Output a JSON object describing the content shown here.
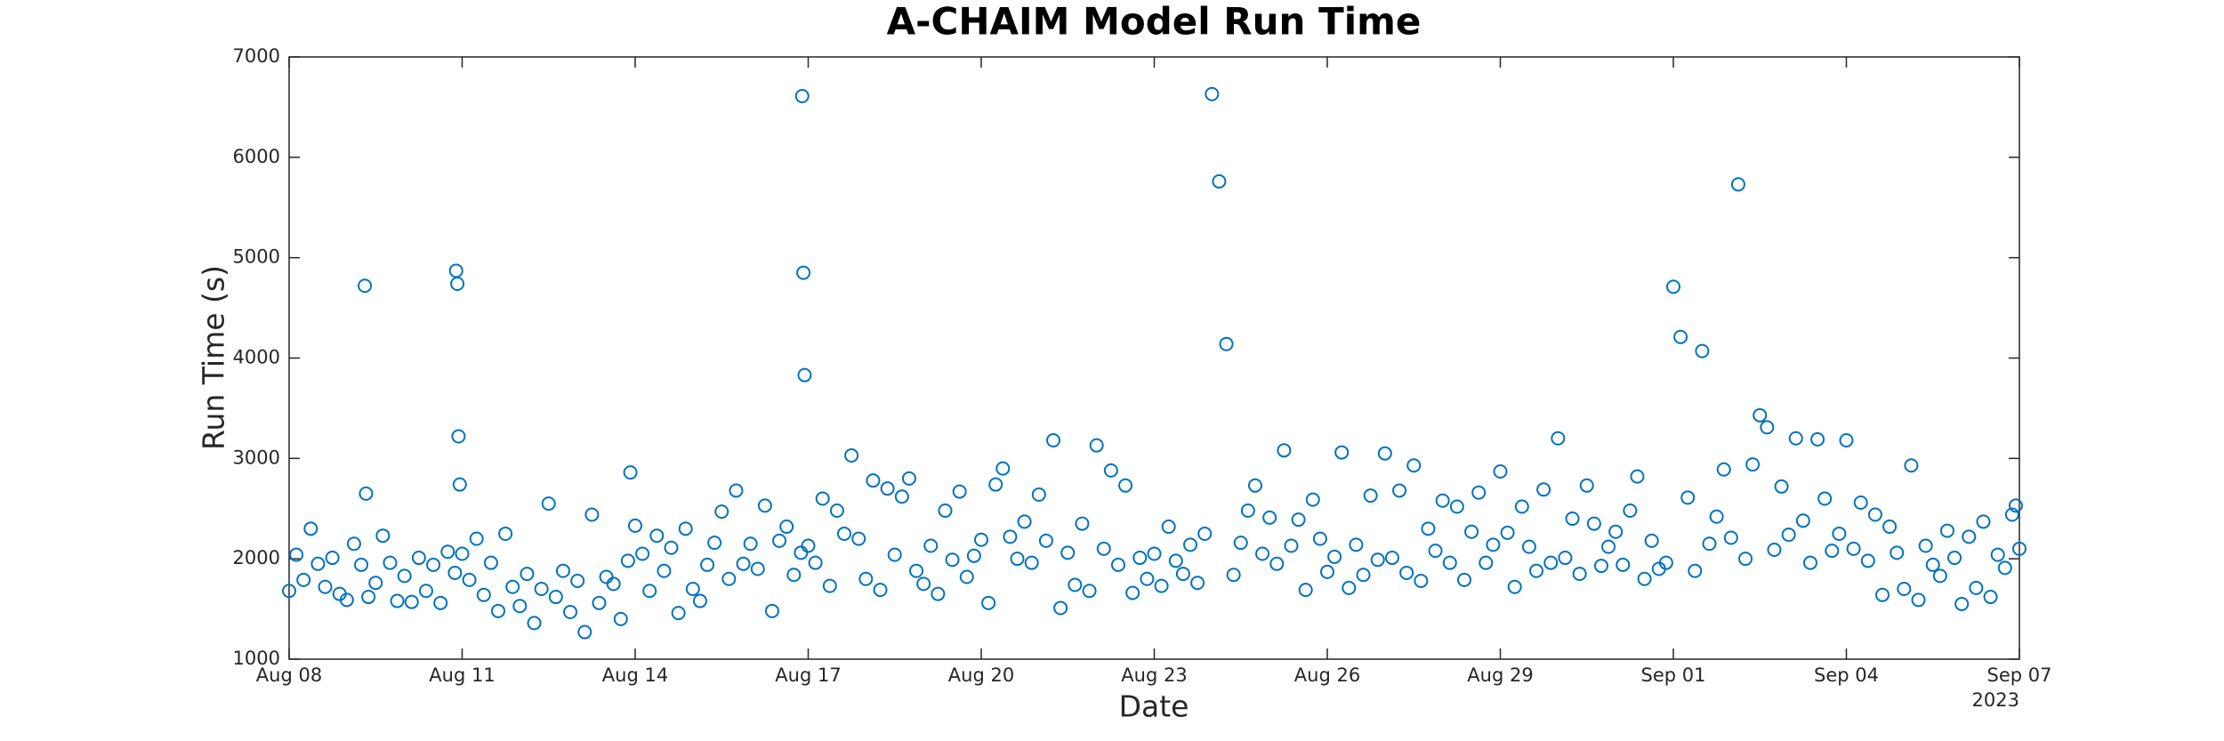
{
  "chart_data": {
    "type": "scatter",
    "title": "A-CHAIM Model Run Time",
    "xlabel": "Date",
    "ylabel": "Run Time (s)",
    "x_year_label": "2023",
    "color": "#0072bd",
    "xlim": [
      "2023-08-08T00:00",
      "2023-09-07T00:00"
    ],
    "xticks": [
      {
        "value": "2023-08-08T00:00",
        "label": "Aug 08"
      },
      {
        "value": "2023-08-11T00:00",
        "label": "Aug 11"
      },
      {
        "value": "2023-08-14T00:00",
        "label": "Aug 14"
      },
      {
        "value": "2023-08-17T00:00",
        "label": "Aug 17"
      },
      {
        "value": "2023-08-20T00:00",
        "label": "Aug 20"
      },
      {
        "value": "2023-08-23T00:00",
        "label": "Aug 23"
      },
      {
        "value": "2023-08-26T00:00",
        "label": "Aug 26"
      },
      {
        "value": "2023-08-29T00:00",
        "label": "Aug 29"
      },
      {
        "value": "2023-09-01T00:00",
        "label": "Sep 01"
      },
      {
        "value": "2023-09-04T00:00",
        "label": "Sep 04"
      },
      {
        "value": "2023-09-07T00:00",
        "label": "Sep 07"
      }
    ],
    "ylim": [
      1000,
      7000
    ],
    "yticks": [
      1000,
      2000,
      3000,
      4000,
      5000,
      6000,
      7000
    ],
    "x": [
      "2023-08-08T00:00",
      "2023-08-08T03:00",
      "2023-08-08T06:00",
      "2023-08-08T09:00",
      "2023-08-08T12:00",
      "2023-08-08T15:00",
      "2023-08-08T18:00",
      "2023-08-08T21:00",
      "2023-08-09T00:00",
      "2023-08-09T03:00",
      "2023-08-09T06:00",
      "2023-08-09T09:00",
      "2023-08-09T12:00",
      "2023-08-09T15:00",
      "2023-08-09T18:00",
      "2023-08-09T21:00",
      "2023-08-09T07:30",
      "2023-08-09T08:00",
      "2023-08-10T00:00",
      "2023-08-10T03:00",
      "2023-08-10T06:00",
      "2023-08-10T09:00",
      "2023-08-10T12:00",
      "2023-08-10T15:00",
      "2023-08-10T18:00",
      "2023-08-10T21:00",
      "2023-08-10T21:30",
      "2023-08-10T22:00",
      "2023-08-10T22:30",
      "2023-08-10T23:00",
      "2023-08-11T00:00",
      "2023-08-11T03:00",
      "2023-08-11T06:00",
      "2023-08-11T09:00",
      "2023-08-11T12:00",
      "2023-08-11T15:00",
      "2023-08-11T18:00",
      "2023-08-11T21:00",
      "2023-08-12T00:00",
      "2023-08-12T03:00",
      "2023-08-12T06:00",
      "2023-08-12T09:00",
      "2023-08-12T12:00",
      "2023-08-12T15:00",
      "2023-08-12T18:00",
      "2023-08-12T21:00",
      "2023-08-13T00:00",
      "2023-08-13T03:00",
      "2023-08-13T06:00",
      "2023-08-13T09:00",
      "2023-08-13T12:00",
      "2023-08-13T15:00",
      "2023-08-13T18:00",
      "2023-08-13T21:00",
      "2023-08-13T22:00",
      "2023-08-14T00:00",
      "2023-08-14T03:00",
      "2023-08-14T06:00",
      "2023-08-14T09:00",
      "2023-08-14T12:00",
      "2023-08-14T15:00",
      "2023-08-14T18:00",
      "2023-08-14T21:00",
      "2023-08-15T00:00",
      "2023-08-15T03:00",
      "2023-08-15T06:00",
      "2023-08-15T09:00",
      "2023-08-15T12:00",
      "2023-08-15T15:00",
      "2023-08-15T18:00",
      "2023-08-15T21:00",
      "2023-08-16T00:00",
      "2023-08-16T03:00",
      "2023-08-16T06:00",
      "2023-08-16T09:00",
      "2023-08-16T12:00",
      "2023-08-16T15:00",
      "2023-08-16T18:00",
      "2023-08-16T21:00",
      "2023-08-16T21:30",
      "2023-08-16T22:00",
      "2023-08-16T22:30",
      "2023-08-17T00:00",
      "2023-08-17T03:00",
      "2023-08-17T06:00",
      "2023-08-17T09:00",
      "2023-08-17T12:00",
      "2023-08-17T15:00",
      "2023-08-17T18:00",
      "2023-08-17T21:00",
      "2023-08-18T00:00",
      "2023-08-18T03:00",
      "2023-08-18T06:00",
      "2023-08-18T09:00",
      "2023-08-18T12:00",
      "2023-08-18T15:00",
      "2023-08-18T18:00",
      "2023-08-18T21:00",
      "2023-08-19T00:00",
      "2023-08-19T03:00",
      "2023-08-19T06:00",
      "2023-08-19T09:00",
      "2023-08-19T12:00",
      "2023-08-19T15:00",
      "2023-08-19T18:00",
      "2023-08-19T21:00",
      "2023-08-20T00:00",
      "2023-08-20T03:00",
      "2023-08-20T06:00",
      "2023-08-20T09:00",
      "2023-08-20T12:00",
      "2023-08-20T15:00",
      "2023-08-20T18:00",
      "2023-08-20T21:00",
      "2023-08-21T00:00",
      "2023-08-21T03:00",
      "2023-08-21T06:00",
      "2023-08-21T09:00",
      "2023-08-21T12:00",
      "2023-08-21T15:00",
      "2023-08-21T18:00",
      "2023-08-21T21:00",
      "2023-08-22T00:00",
      "2023-08-22T03:00",
      "2023-08-22T06:00",
      "2023-08-22T09:00",
      "2023-08-22T12:00",
      "2023-08-22T15:00",
      "2023-08-22T18:00",
      "2023-08-22T21:00",
      "2023-08-23T00:00",
      "2023-08-23T03:00",
      "2023-08-23T06:00",
      "2023-08-23T09:00",
      "2023-08-23T12:00",
      "2023-08-23T15:00",
      "2023-08-23T18:00",
      "2023-08-23T21:00",
      "2023-08-24T00:00",
      "2023-08-24T03:00",
      "2023-08-24T06:00",
      "2023-08-24T09:00",
      "2023-08-24T12:00",
      "2023-08-24T15:00",
      "2023-08-24T18:00",
      "2023-08-24T21:00",
      "2023-08-25T00:00",
      "2023-08-25T03:00",
      "2023-08-25T06:00",
      "2023-08-25T09:00",
      "2023-08-25T12:00",
      "2023-08-25T15:00",
      "2023-08-25T18:00",
      "2023-08-25T21:00",
      "2023-08-26T00:00",
      "2023-08-26T03:00",
      "2023-08-26T06:00",
      "2023-08-26T09:00",
      "2023-08-26T12:00",
      "2023-08-26T15:00",
      "2023-08-26T18:00",
      "2023-08-26T21:00",
      "2023-08-27T00:00",
      "2023-08-27T03:00",
      "2023-08-27T06:00",
      "2023-08-27T09:00",
      "2023-08-27T12:00",
      "2023-08-27T15:00",
      "2023-08-27T18:00",
      "2023-08-27T21:00",
      "2023-08-28T00:00",
      "2023-08-28T03:00",
      "2023-08-28T06:00",
      "2023-08-28T09:00",
      "2023-08-28T12:00",
      "2023-08-28T15:00",
      "2023-08-28T18:00",
      "2023-08-28T21:00",
      "2023-08-29T00:00",
      "2023-08-29T03:00",
      "2023-08-29T06:00",
      "2023-08-29T09:00",
      "2023-08-29T12:00",
      "2023-08-29T15:00",
      "2023-08-29T18:00",
      "2023-08-29T21:00",
      "2023-08-30T00:00",
      "2023-08-30T03:00",
      "2023-08-30T06:00",
      "2023-08-30T09:00",
      "2023-08-30T12:00",
      "2023-08-30T15:00",
      "2023-08-30T18:00",
      "2023-08-30T21:00",
      "2023-08-31T00:00",
      "2023-08-31T03:00",
      "2023-08-31T06:00",
      "2023-08-31T09:00",
      "2023-08-31T12:00",
      "2023-08-31T15:00",
      "2023-08-31T18:00",
      "2023-08-31T21:00",
      "2023-09-01T00:00",
      "2023-09-01T03:00",
      "2023-09-01T06:00",
      "2023-09-01T09:00",
      "2023-09-01T12:00",
      "2023-09-01T15:00",
      "2023-09-01T18:00",
      "2023-09-01T21:00",
      "2023-09-02T00:00",
      "2023-09-02T03:00",
      "2023-09-02T06:00",
      "2023-09-02T09:00",
      "2023-09-02T12:00",
      "2023-09-02T15:00",
      "2023-09-02T18:00",
      "2023-09-02T21:00",
      "2023-09-03T00:00",
      "2023-09-03T03:00",
      "2023-09-03T06:00",
      "2023-09-03T09:00",
      "2023-09-03T12:00",
      "2023-09-03T15:00",
      "2023-09-03T18:00",
      "2023-09-03T21:00",
      "2023-09-04T00:00",
      "2023-09-04T03:00",
      "2023-09-04T06:00",
      "2023-09-04T09:00",
      "2023-09-04T12:00",
      "2023-09-04T15:00",
      "2023-09-04T18:00",
      "2023-09-04T21:00",
      "2023-09-05T00:00",
      "2023-09-05T03:00",
      "2023-09-05T06:00",
      "2023-09-05T09:00",
      "2023-09-05T12:00",
      "2023-09-05T15:00",
      "2023-09-05T18:00",
      "2023-09-05T21:00",
      "2023-09-06T00:00",
      "2023-09-06T03:00",
      "2023-09-06T06:00",
      "2023-09-06T09:00",
      "2023-09-06T12:00",
      "2023-09-06T15:00",
      "2023-09-06T18:00",
      "2023-09-06T21:00",
      "2023-09-06T22:30",
      "2023-09-07T00:00"
    ],
    "values": [
      1680,
      2040,
      1790,
      2300,
      1950,
      1720,
      2010,
      1650,
      1590,
      2150,
      1940,
      1620,
      1760,
      2230,
      1960,
      1580,
      4720,
      2650,
      1830,
      1570,
      2010,
      1680,
      1940,
      1560,
      2070,
      1860,
      4870,
      4740,
      3220,
      2740,
      2050,
      1790,
      2200,
      1640,
      1960,
      1480,
      2250,
      1720,
      1530,
      1850,
      1360,
      1700,
      2550,
      1620,
      1880,
      1470,
      1780,
      1270,
      2440,
      1560,
      1820,
      1750,
      1400,
      1980,
      2860,
      2330,
      2050,
      1680,
      2230,
      1880,
      2110,
      1460,
      2300,
      1700,
      1580,
      1940,
      2160,
      2470,
      1800,
      2680,
      1950,
      2150,
      1900,
      2530,
      1480,
      2180,
      2320,
      1840,
      2060,
      6610,
      4850,
      3830,
      2130,
      1960,
      2600,
      1730,
      2480,
      2250,
      3030,
      2200,
      1800,
      2780,
      1690,
      2700,
      2040,
      2620,
      2800,
      1880,
      1750,
      2130,
      1650,
      2480,
      1990,
      2670,
      1820,
      2030,
      2190,
      1560,
      2740,
      2900,
      2220,
      2000,
      2370,
      1960,
      2640,
      2180,
      3180,
      1510,
      2060,
      1740,
      2350,
      1680,
      3130,
      2100,
      2880,
      1940,
      2730,
      1660,
      2010,
      1800,
      2050,
      1730,
      2320,
      1980,
      1850,
      2140,
      1760,
      2250,
      6630,
      5760,
      4140,
      1840,
      2160,
      2480,
      2730,
      2050,
      2410,
      1950,
      3080,
      2130,
      2390,
      1690,
      2590,
      2200,
      1870,
      2020,
      3060,
      1710,
      2140,
      1840,
      2630,
      1990,
      3050,
      2010,
      2680,
      1860,
      2930,
      1780,
      2300,
      2080,
      2580,
      1960,
      2520,
      1790,
      2270,
      2660,
      1960,
      2140,
      2870,
      2260,
      1720,
      2520,
      2120,
      1880,
      2690,
      1960,
      3200,
      2010,
      2400,
      1850,
      2730,
      2350,
      1930,
      2120,
      2270,
      1940,
      2480,
      2820,
      1800,
      2180,
      1900,
      1960,
      4710,
      4210,
      2610,
      1880,
      4070,
      2150,
      2420,
      2890,
      2210,
      5730,
      2000,
      2940,
      3430,
      3310,
      2090,
      2720,
      2240,
      3200,
      2380,
      1960,
      3190,
      2600,
      2080,
      2250,
      3180,
      2100,
      2560,
      1980,
      2440,
      1640,
      2320,
      2060,
      1700,
      2930,
      1590,
      2130,
      1940,
      1830,
      2280,
      2010,
      1550,
      2220,
      1710,
      2370,
      1620,
      2040,
      1910,
      2440,
      2530,
      2100
    ]
  }
}
